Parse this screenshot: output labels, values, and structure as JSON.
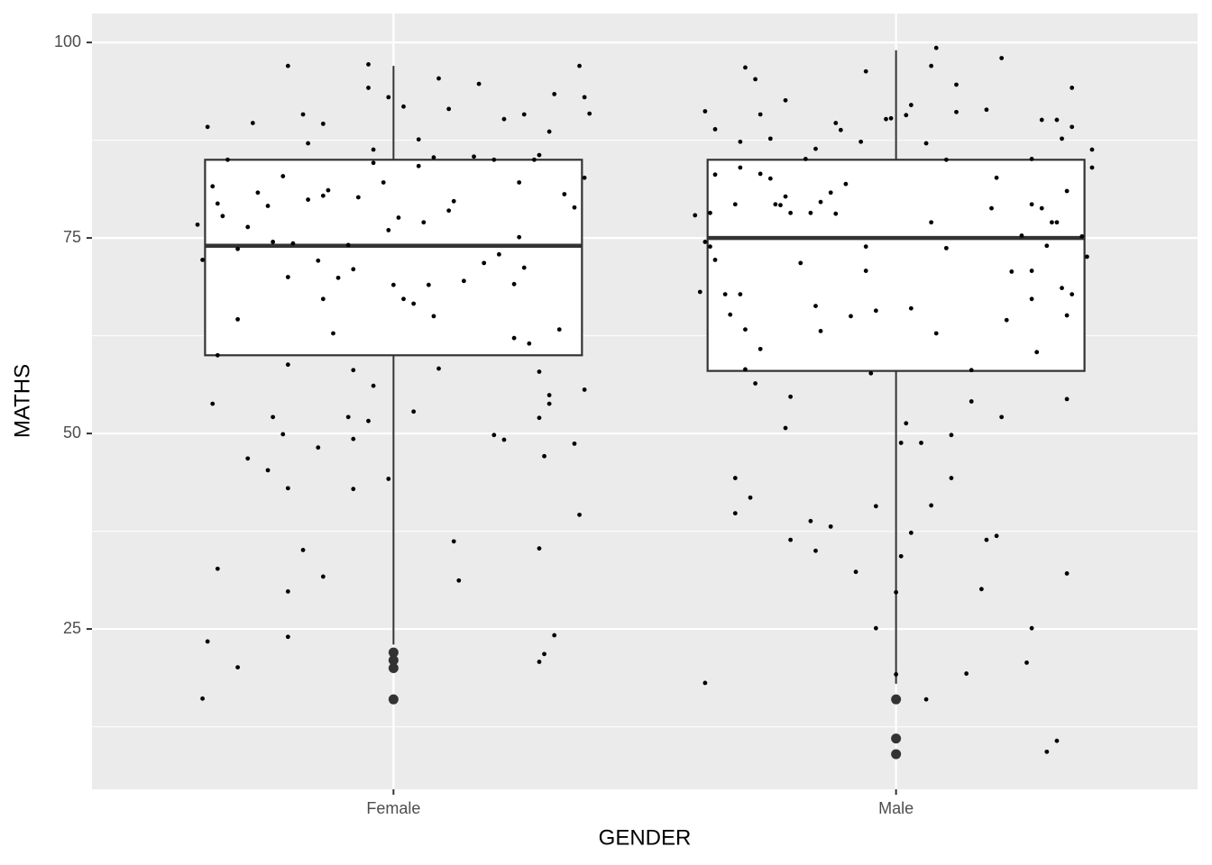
{
  "chart_data": {
    "type": "boxplot",
    "x_label": "GENDER",
    "y_label": "MATHS",
    "categories": [
      "Female",
      "Male"
    ],
    "xlim": [
      0.4,
      2.6
    ],
    "ylim": [
      4.5,
      103.7
    ],
    "yticks": [
      25,
      50,
      75,
      100
    ],
    "minor_yticks": [
      12.5,
      37.5,
      62.5,
      87.5
    ],
    "grid": true,
    "box_color": "#333333",
    "point_color": "#000000",
    "boxes": [
      {
        "whisker_low": 23,
        "q1": 60,
        "median": 74,
        "q3": 85,
        "whisker_high": 97,
        "outliers": [
          22,
          21,
          20,
          16
        ]
      },
      {
        "whisker_low": 18,
        "q1": 58,
        "median": 75,
        "q3": 85,
        "whisker_high": 99,
        "outliers": [
          16,
          11,
          9
        ]
      }
    ],
    "points": [
      {
        "jitter": [
          -0.39,
          -0.38,
          -0.37,
          -0.36,
          -0.35,
          -0.35,
          -0.34,
          -0.33,
          -0.31,
          -0.31,
          -0.29,
          -0.28,
          -0.27,
          -0.25,
          -0.24,
          -0.22,
          -0.21,
          -0.21,
          -0.2,
          -0.18,
          -0.17,
          -0.17,
          -0.15,
          -0.14,
          -0.14,
          -0.14,
          -0.13,
          -0.12,
          -0.11,
          -0.09,
          -0.08,
          -0.07,
          -0.05,
          -0.05,
          -0.04,
          -0.04,
          -0.02,
          -0.01,
          -0.01,
          0,
          0.01,
          0.02,
          0.02,
          0.04,
          0.05,
          0.05,
          0.06,
          0.07,
          0.08,
          0.08,
          0.09,
          0.11,
          0.11,
          0.12,
          0.14,
          0.16,
          0.17,
          0.18,
          0.2,
          0.21,
          0.22,
          0.24,
          0.24,
          0.25,
          0.25,
          0.26,
          0.26,
          0.27,
          0.28,
          0.29,
          0.31,
          0.32,
          0.33,
          0.34,
          0.36,
          0.37,
          0.38,
          0.38,
          0.39,
          -0.36,
          -0.35,
          -0.37,
          -0.38,
          -0.31,
          -0.29,
          -0.25,
          -0.24,
          -0.22,
          -0.21,
          -0.21,
          -0.21,
          -0.18,
          -0.15,
          -0.14,
          -0.09,
          -0.08,
          -0.08,
          -0.04,
          -0.05,
          -0.01,
          0.04,
          0.09,
          0.12,
          0.13,
          0.2,
          0.22,
          0.29,
          0.29,
          0.29,
          0.3,
          0.3,
          0.31,
          0.31,
          0.32,
          0.36,
          0.37,
          0.38,
          0.29,
          -0.08,
          -0.21
        ],
        "values": [
          76.7,
          72.2,
          89.2,
          81.6,
          79.4,
          60,
          77.8,
          85,
          64.6,
          73.6,
          76.4,
          89.7,
          80.8,
          79.1,
          74.5,
          82.9,
          70,
          97,
          74.3,
          90.8,
          87.1,
          79.9,
          72.1,
          89.6,
          80.4,
          67.2,
          81.1,
          62.8,
          69.9,
          74.1,
          71,
          80.2,
          94.2,
          97.2,
          86.3,
          84.6,
          82.1,
          76,
          93,
          69,
          77.6,
          67.2,
          91.8,
          66.6,
          87.6,
          84.2,
          77,
          69,
          65,
          85.3,
          95.4,
          91.5,
          78.5,
          79.7,
          69.5,
          85.4,
          94.7,
          71.8,
          85,
          72.9,
          90.2,
          69.1,
          62.2,
          75.1,
          82.1,
          90.8,
          71.2,
          61.5,
          85,
          85.6,
          88.6,
          93.4,
          63.3,
          80.6,
          78.9,
          97,
          93,
          82.7,
          90.9,
          53.8,
          32.7,
          23.4,
          16.1,
          20.1,
          46.8,
          45.3,
          52.1,
          49.9,
          43,
          29.8,
          24,
          35.1,
          48.2,
          31.7,
          52.1,
          49.3,
          42.9,
          56.1,
          51.6,
          44.2,
          52.8,
          58.3,
          36.2,
          31.2,
          49.8,
          49.2,
          52,
          35.3,
          20.8,
          21.8,
          47.1,
          54.9,
          53.8,
          24.2,
          48.7,
          39.6,
          55.6,
          57.9,
          58.1,
          58.8
        ]
      },
      {
        "jitter": [
          -0.4,
          -0.39,
          -0.38,
          -0.38,
          -0.37,
          -0.37,
          -0.36,
          -0.36,
          -0.36,
          -0.34,
          -0.33,
          -0.32,
          -0.31,
          -0.31,
          -0.31,
          -0.3,
          -0.3,
          -0.28,
          -0.27,
          -0.27,
          -0.27,
          -0.25,
          -0.25,
          -0.24,
          -0.23,
          -0.22,
          -0.22,
          -0.21,
          -0.19,
          -0.18,
          -0.17,
          -0.16,
          -0.16,
          -0.15,
          -0.15,
          -0.13,
          -0.12,
          -0.12,
          -0.11,
          -0.1,
          -0.09,
          -0.07,
          -0.06,
          -0.06,
          -0.06,
          -0.04,
          -0.02,
          -0.01,
          0.02,
          0.03,
          0.03,
          0.06,
          0.07,
          0.07,
          0.08,
          0.08,
          0.1,
          0.1,
          0.12,
          0.12,
          0.18,
          0.19,
          0.2,
          0.21,
          0.22,
          0.23,
          0.25,
          0.27,
          0.27,
          0.27,
          0.27,
          0.28,
          0.29,
          0.29,
          0.3,
          0.31,
          0.32,
          0.32,
          0.33,
          0.33,
          0.34,
          0.34,
          0.35,
          0.35,
          0.35,
          0.37,
          0.38,
          0.39,
          0.39,
          -0.38,
          -0.32,
          -0.32,
          -0.29,
          -0.3,
          -0.28,
          -0.22,
          -0.21,
          -0.21,
          -0.17,
          -0.16,
          -0.13,
          -0.08,
          -0.05,
          -0.04,
          -0.04,
          0,
          0,
          0.01,
          0.01,
          0.02,
          0.03,
          0.05,
          0.06,
          0.07,
          0.11,
          0.11,
          0.14,
          0.15,
          0.15,
          0.17,
          0.18,
          0.2,
          0.21,
          0.26,
          0.27,
          0.3,
          0.32,
          0.34,
          0.34
        ],
        "values": [
          77.9,
          68.1,
          74.5,
          91.2,
          73.9,
          78.2,
          88.9,
          72.2,
          83.1,
          67.8,
          65.2,
          79.3,
          84,
          87.3,
          67.8,
          63.3,
          96.8,
          95.3,
          60.8,
          83.2,
          90.8,
          87.7,
          82.6,
          79.3,
          79.2,
          92.6,
          80.3,
          78.2,
          71.8,
          85.1,
          78.2,
          66.3,
          86.4,
          63.1,
          79.6,
          80.8,
          89.7,
          78.1,
          88.8,
          81.9,
          65,
          87.3,
          96.3,
          70.8,
          73.9,
          65.7,
          90.2,
          90.3,
          90.7,
          92,
          66,
          87.1,
          77,
          97,
          62.8,
          99.3,
          73.7,
          85,
          91.1,
          94.6,
          91.4,
          78.8,
          82.7,
          98,
          64.5,
          70.7,
          75.3,
          70.8,
          67.2,
          79.3,
          85.1,
          60.4,
          78.8,
          90.1,
          74,
          77,
          90.1,
          77,
          87.7,
          68.6,
          81,
          65.1,
          67.8,
          94.2,
          89.2,
          75.2,
          72.6,
          84,
          86.3,
          18.1,
          39.8,
          44.3,
          41.8,
          58.2,
          56.4,
          50.7,
          54.7,
          36.4,
          38.8,
          35,
          38.1,
          32.3,
          57.7,
          40.7,
          25.1,
          29.7,
          19.2,
          48.8,
          34.3,
          51.3,
          37.3,
          48.8,
          16,
          40.8,
          44.3,
          49.8,
          19.3,
          58.1,
          54.1,
          30.1,
          36.4,
          36.9,
          52.1,
          20.7,
          25.1,
          9.3,
          10.7,
          54.4,
          32.1
        ]
      }
    ]
  }
}
